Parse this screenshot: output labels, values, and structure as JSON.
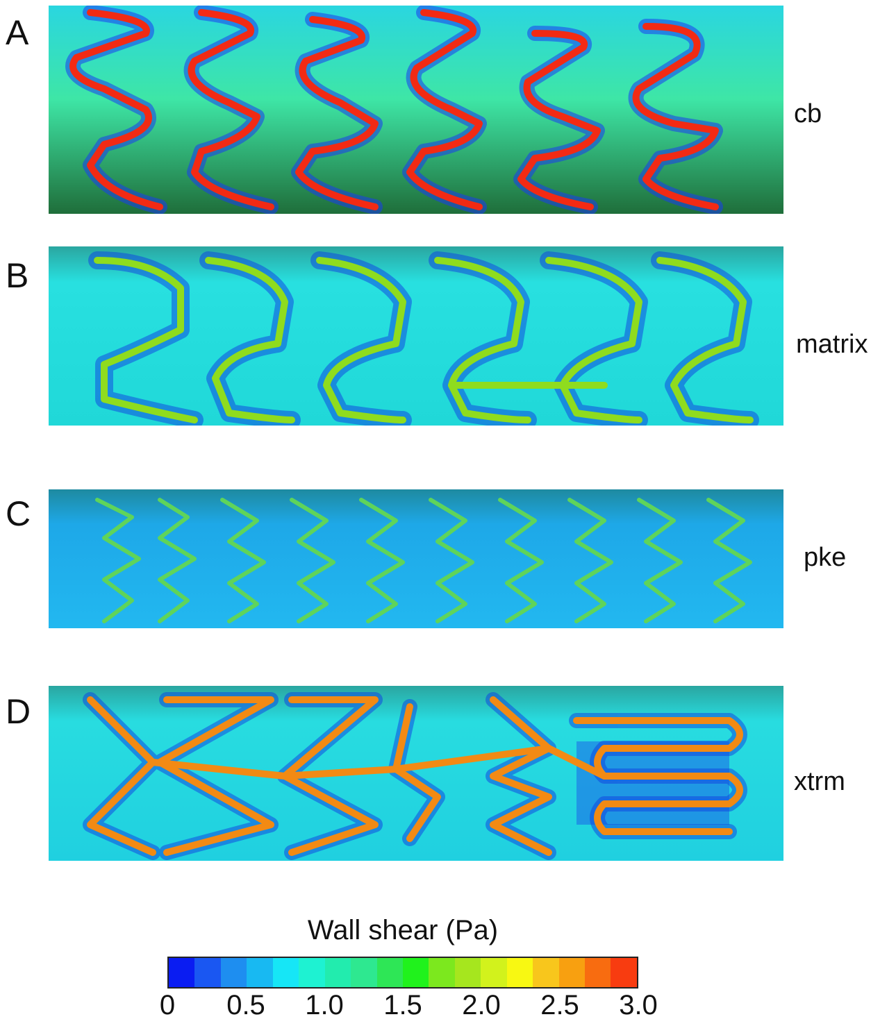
{
  "panels": [
    {
      "letter": "A",
      "name": "cb",
      "strut_color": "#f22a14",
      "edge_color": "#f7d21c"
    },
    {
      "letter": "B",
      "name": "matrix",
      "strut_color": "#8fdc1e",
      "edge_color": "#e8e51c"
    },
    {
      "letter": "C",
      "name": "pke",
      "strut_color": "#5fd45a",
      "edge_color": "#b5e03a"
    },
    {
      "letter": "D",
      "name": "xtrm",
      "strut_color": "#f28a14",
      "edge_color": "#f2e41c"
    }
  ],
  "colorbar": {
    "title": "Wall shear (Pa)",
    "tick_labels": [
      "0",
      "0.5",
      "1.0",
      "1.5",
      "2.0",
      "2.5",
      "3.0"
    ],
    "min": 0,
    "max": 3.0,
    "colors": [
      "#0a1cf2",
      "#1a57f2",
      "#1e8ef0",
      "#18b9f2",
      "#16e6f6",
      "#1ef2d2",
      "#22ecae",
      "#2ee890",
      "#2ee656",
      "#20f21c",
      "#7ce81e",
      "#a6e61e",
      "#d2f21c",
      "#f8f812",
      "#f8c61c",
      "#f8a010",
      "#f86c10",
      "#f83c10"
    ]
  }
}
